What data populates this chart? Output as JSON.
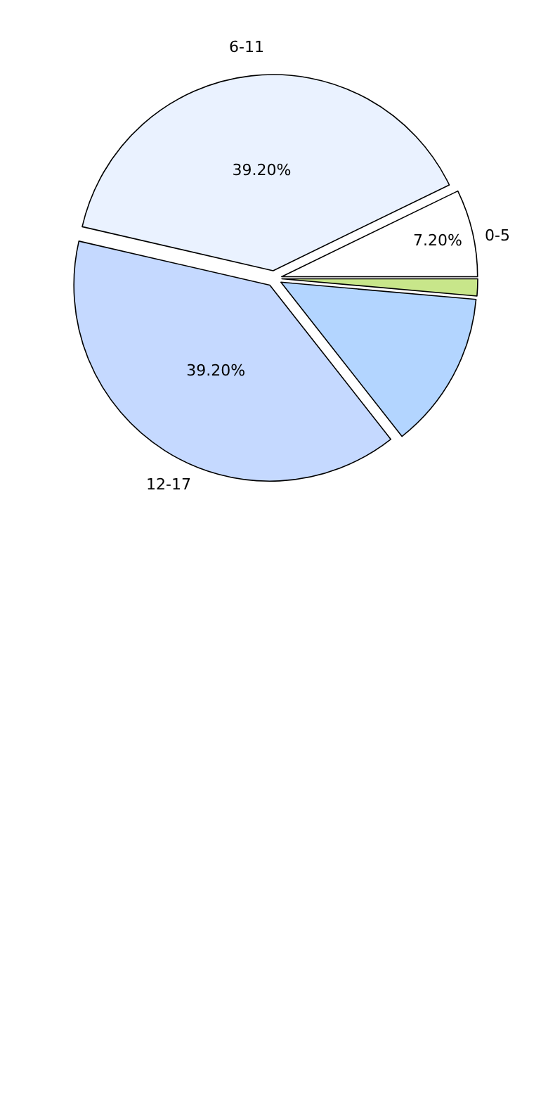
{
  "chart_data": {
    "type": "pie",
    "categories": [
      "0-5",
      "6-11",
      "12-17",
      null,
      null
    ],
    "values": [
      7.2,
      39.2,
      39.2,
      13.0,
      1.4
    ],
    "colors": [
      "#ffffff",
      "#eaf2ff",
      "#c5d9ff",
      "#b3d5ff",
      "#c8e68a"
    ],
    "value_labels": [
      "7.20%",
      "39.20%",
      "39.20%",
      null,
      null
    ]
  }
}
